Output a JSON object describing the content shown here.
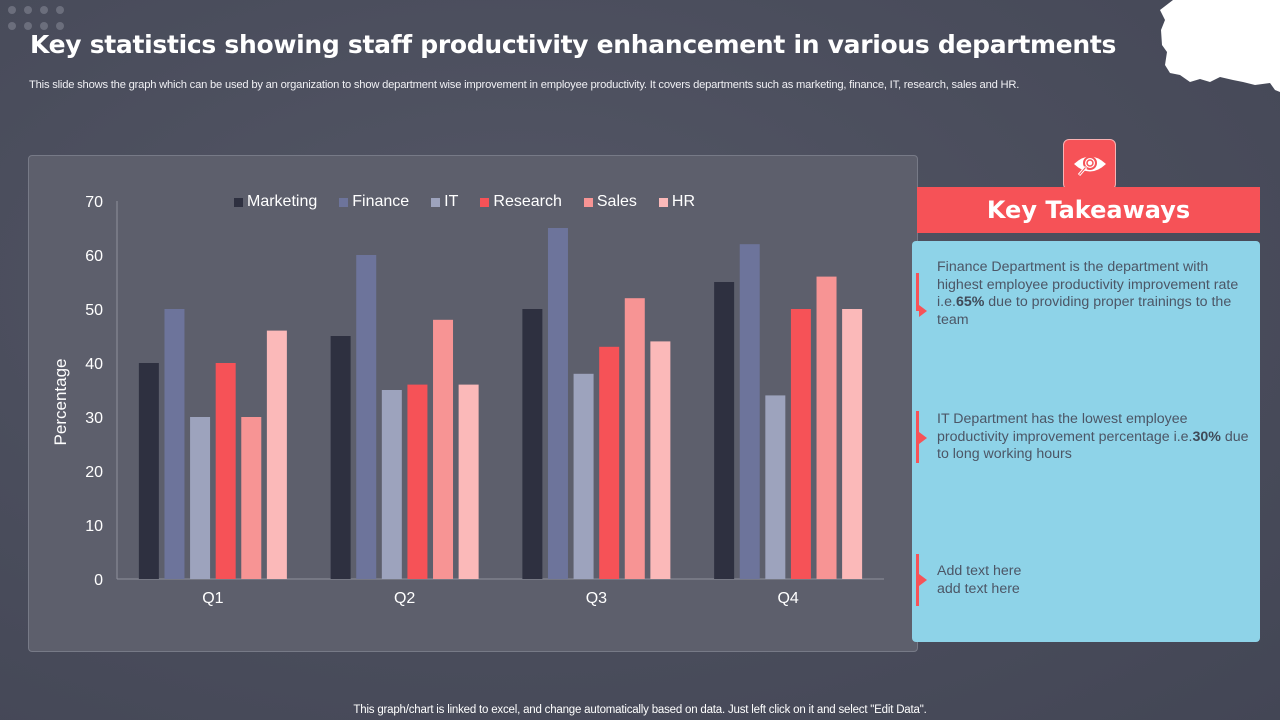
{
  "slide": {
    "title": "Key statistics showing staff productivity enhancement in various departments",
    "subtitle": "This slide shows the graph which can be used by an organization to show department wise improvement in employee productivity. It covers departments such as marketing, finance, IT, research, sales and HR.",
    "footer": "This graph/chart is linked to excel, and change automatically based on data. Just left click on it and select \"Edit Data\"."
  },
  "chart_data": {
    "type": "bar",
    "title": "",
    "xlabel": "",
    "ylabel": "Percentage",
    "ylim": [
      0,
      70
    ],
    "yticks": [
      0,
      10,
      20,
      30,
      40,
      50,
      60,
      70
    ],
    "grid": false,
    "legend_position": "top",
    "categories": [
      "Q1",
      "Q2",
      "Q3",
      "Q4"
    ],
    "series": [
      {
        "name": "Marketing",
        "color": "#2e3040",
        "values": [
          40,
          45,
          50,
          55
        ]
      },
      {
        "name": "Finance",
        "color": "#6d749b",
        "values": [
          50,
          60,
          65,
          62
        ]
      },
      {
        "name": "IT",
        "color": "#9da3bd",
        "values": [
          30,
          35,
          38,
          34
        ]
      },
      {
        "name": "Research",
        "color": "#f65257",
        "values": [
          40,
          36,
          43,
          50
        ]
      },
      {
        "name": "Sales",
        "color": "#f79494",
        "values": [
          30,
          48,
          52,
          56
        ]
      },
      {
        "name": "HR",
        "color": "#fbb9b9",
        "values": [
          46,
          36,
          44,
          50
        ]
      }
    ]
  },
  "takeaways": {
    "heading": "Key Takeaways",
    "icon": "eye-magnifier-icon",
    "items": [
      {
        "before": "Finance Department is the department with highest  employee productivity improvement rate i.e.",
        "bold": "65%",
        "after": " due to  providing proper trainings to the team"
      },
      {
        "before": "IT Department has the lowest employee productivity improvement percentage i.e.",
        "bold": "30%",
        "after": " due to long working hours"
      },
      {
        "before": "Add text here add text here",
        "bold": "",
        "after": ""
      }
    ]
  },
  "colors": {
    "accent": "#f65257",
    "panel": "#8ed3e8",
    "background": "#4a4d5c"
  }
}
